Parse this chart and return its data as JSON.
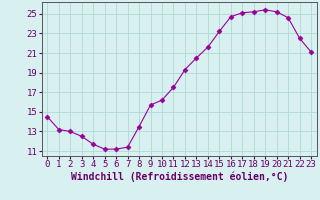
{
  "x": [
    0,
    1,
    2,
    3,
    4,
    5,
    6,
    7,
    8,
    9,
    10,
    11,
    12,
    13,
    14,
    15,
    16,
    17,
    18,
    19,
    20,
    21,
    22,
    23
  ],
  "y": [
    14.5,
    13.2,
    13.0,
    12.5,
    11.7,
    11.2,
    11.2,
    11.4,
    13.5,
    15.7,
    16.2,
    17.5,
    19.3,
    20.5,
    21.6,
    23.2,
    24.7,
    25.1,
    25.2,
    25.4,
    25.2,
    24.6,
    22.5,
    21.1
  ],
  "line_color": "#990099",
  "marker": "D",
  "marker_size": 2.5,
  "bg_color": "#d8f0f0",
  "grid_color": "#b0d8d8",
  "xlabel": "Windchill (Refroidissement éolien,°C)",
  "xlabel_fontsize": 7,
  "tick_fontsize": 6.5,
  "xlim": [
    -0.5,
    23.5
  ],
  "ylim": [
    10.5,
    26.2
  ],
  "yticks": [
    11,
    13,
    15,
    17,
    19,
    21,
    23,
    25
  ],
  "xticks": [
    0,
    1,
    2,
    3,
    4,
    5,
    6,
    7,
    8,
    9,
    10,
    11,
    12,
    13,
    14,
    15,
    16,
    17,
    18,
    19,
    20,
    21,
    22,
    23
  ]
}
